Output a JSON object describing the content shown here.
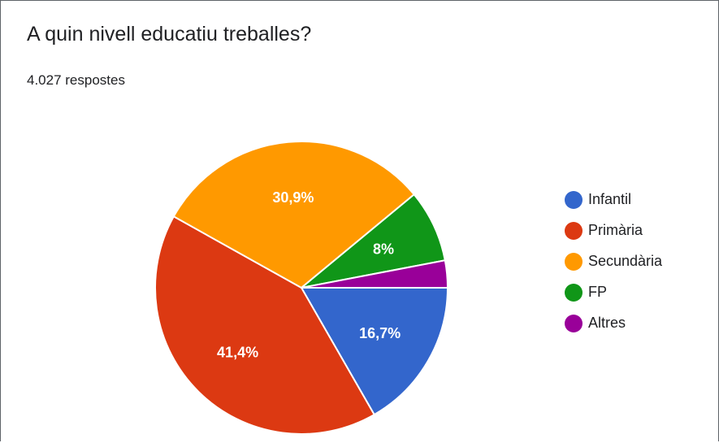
{
  "header": {
    "title": "A quin nivell educatiu treballes?",
    "response_count": "4.027 respostes"
  },
  "chart_data": {
    "type": "pie",
    "title": "A quin nivell educatiu treballes?",
    "categories": [
      "Infantil",
      "Primària",
      "Secundària",
      "FP",
      "Altres"
    ],
    "values": [
      16.7,
      41.4,
      30.9,
      8.0,
      3.0
    ],
    "data_labels": [
      "16,7%",
      "41,4%",
      "30,9%",
      "8%",
      ""
    ],
    "colors": [
      "#3366cc",
      "#dc3912",
      "#ff9900",
      "#109618",
      "#990099"
    ],
    "start": "3 o'clock",
    "direction": "clockwise",
    "legend_position": "right"
  }
}
